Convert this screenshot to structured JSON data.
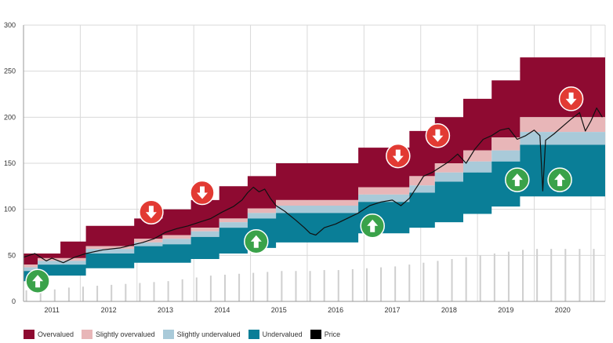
{
  "chart_data": {
    "type": "area",
    "title": "",
    "xlabel": "",
    "ylabel": "",
    "ylim": [
      0,
      300
    ],
    "y_ticks": [
      "0",
      "50",
      "100",
      "150",
      "200",
      "250",
      "300"
    ],
    "x_ticks": [
      "2011",
      "2012",
      "2013",
      "2014",
      "2015",
      "2016",
      "2017",
      "2018",
      "2019",
      "2020"
    ],
    "grid": true,
    "legend_position": "bottom",
    "legend": [
      {
        "label": "Overvalued",
        "color": "#8e0a31"
      },
      {
        "label": "Slightly overvalued",
        "color": "#e8b6b8"
      },
      {
        "label": "Slightly undervalued",
        "color": "#a9cad9"
      },
      {
        "label": "Undervalued",
        "color": "#0a7e97"
      },
      {
        "label": "Price",
        "color": "#000000"
      }
    ],
    "band_steps": [
      {
        "x": 2010.5,
        "b1": 22,
        "b2": 33,
        "b3": 37,
        "b4": 40,
        "top": 52
      },
      {
        "x": 2010.75,
        "b1": 28,
        "b2": 40,
        "b3": 44,
        "b4": 47,
        "top": 52
      },
      {
        "x": 2011.15,
        "b1": 28,
        "b2": 40,
        "b3": 44,
        "b4": 47,
        "top": 65
      },
      {
        "x": 2011.6,
        "b1": 36,
        "b2": 52,
        "b3": 57,
        "b4": 60,
        "top": 82
      },
      {
        "x": 2012.45,
        "b1": 42,
        "b2": 60,
        "b3": 64,
        "b4": 68,
        "top": 90
      },
      {
        "x": 2012.95,
        "b1": 42,
        "b2": 62,
        "b3": 68,
        "b4": 72,
        "top": 100
      },
      {
        "x": 2013.45,
        "b1": 46,
        "b2": 70,
        "b3": 76,
        "b4": 80,
        "top": 110
      },
      {
        "x": 2013.95,
        "b1": 52,
        "b2": 80,
        "b3": 86,
        "b4": 90,
        "top": 125
      },
      {
        "x": 2014.45,
        "b1": 58,
        "b2": 90,
        "b3": 96,
        "b4": 101,
        "top": 136
      },
      {
        "x": 2014.95,
        "b1": 64,
        "b2": 96,
        "b3": 104,
        "b4": 110,
        "top": 150
      },
      {
        "x": 2016.4,
        "b1": 74,
        "b2": 108,
        "b3": 116,
        "b4": 124,
        "top": 167
      },
      {
        "x": 2017.3,
        "b1": 80,
        "b2": 118,
        "b3": 126,
        "b4": 136,
        "top": 185
      },
      {
        "x": 2017.75,
        "b1": 86,
        "b2": 130,
        "b3": 140,
        "b4": 150,
        "top": 200
      },
      {
        "x": 2018.25,
        "b1": 95,
        "b2": 140,
        "b3": 152,
        "b4": 164,
        "top": 220
      },
      {
        "x": 2018.75,
        "b1": 103,
        "b2": 152,
        "b3": 164,
        "b4": 178,
        "top": 240
      },
      {
        "x": 2019.25,
        "b1": 114,
        "b2": 170,
        "b3": 184,
        "b4": 200,
        "top": 265
      },
      {
        "x": 2020.6,
        "b1": 114,
        "b2": 170,
        "b3": 184,
        "b4": 200,
        "top": 265
      }
    ],
    "price": [
      [
        2010.5,
        48
      ],
      [
        2010.7,
        52
      ],
      [
        2010.9,
        44
      ],
      [
        2011.0,
        47
      ],
      [
        2011.2,
        42
      ],
      [
        2011.4,
        48
      ],
      [
        2011.6,
        52
      ],
      [
        2011.9,
        56
      ],
      [
        2012.2,
        58
      ],
      [
        2012.4,
        61
      ],
      [
        2012.6,
        64
      ],
      [
        2012.8,
        68
      ],
      [
        2013.0,
        75
      ],
      [
        2013.2,
        79
      ],
      [
        2013.4,
        82
      ],
      [
        2013.6,
        86
      ],
      [
        2013.8,
        90
      ],
      [
        2014.0,
        97
      ],
      [
        2014.2,
        103
      ],
      [
        2014.35,
        110
      ],
      [
        2014.45,
        118
      ],
      [
        2014.55,
        124
      ],
      [
        2014.65,
        119
      ],
      [
        2014.75,
        122
      ],
      [
        2014.85,
        112
      ],
      [
        2014.95,
        104
      ],
      [
        2015.1,
        98
      ],
      [
        2015.3,
        88
      ],
      [
        2015.45,
        80
      ],
      [
        2015.55,
        74
      ],
      [
        2015.65,
        72
      ],
      [
        2015.8,
        80
      ],
      [
        2016.0,
        84
      ],
      [
        2016.2,
        90
      ],
      [
        2016.4,
        96
      ],
      [
        2016.6,
        104
      ],
      [
        2016.8,
        108
      ],
      [
        2017.0,
        110
      ],
      [
        2017.15,
        104
      ],
      [
        2017.3,
        112
      ],
      [
        2017.45,
        126
      ],
      [
        2017.55,
        136
      ],
      [
        2017.7,
        140
      ],
      [
        2017.85,
        146
      ],
      [
        2018.0,
        152
      ],
      [
        2018.15,
        160
      ],
      [
        2018.3,
        150
      ],
      [
        2018.45,
        165
      ],
      [
        2018.6,
        176
      ],
      [
        2018.75,
        180
      ],
      [
        2018.9,
        186
      ],
      [
        2019.05,
        188
      ],
      [
        2019.2,
        176
      ],
      [
        2019.35,
        180
      ],
      [
        2019.5,
        186
      ],
      [
        2019.6,
        180
      ],
      [
        2019.65,
        120
      ],
      [
        2019.7,
        175
      ],
      [
        2019.85,
        182
      ],
      [
        2020.0,
        190
      ],
      [
        2020.15,
        198
      ],
      [
        2020.3,
        205
      ],
      [
        2020.4,
        185
      ],
      [
        2020.5,
        196
      ],
      [
        2020.6,
        210
      ],
      [
        2020.7,
        200
      ]
    ],
    "volume_bars": [
      [
        2010.55,
        12
      ],
      [
        2010.8,
        14
      ],
      [
        2011.05,
        13
      ],
      [
        2011.3,
        15
      ],
      [
        2011.55,
        16
      ],
      [
        2011.8,
        17
      ],
      [
        2012.05,
        18
      ],
      [
        2012.3,
        19
      ],
      [
        2012.55,
        20
      ],
      [
        2012.8,
        21
      ],
      [
        2013.05,
        22
      ],
      [
        2013.3,
        24
      ],
      [
        2013.55,
        26
      ],
      [
        2013.8,
        28
      ],
      [
        2014.05,
        29
      ],
      [
        2014.3,
        30
      ],
      [
        2014.55,
        31
      ],
      [
        2014.8,
        32
      ],
      [
        2015.05,
        33
      ],
      [
        2015.3,
        33
      ],
      [
        2015.55,
        33
      ],
      [
        2015.8,
        34
      ],
      [
        2016.05,
        34
      ],
      [
        2016.3,
        35
      ],
      [
        2016.55,
        36
      ],
      [
        2016.8,
        37
      ],
      [
        2017.05,
        38
      ],
      [
        2017.3,
        40
      ],
      [
        2017.55,
        42
      ],
      [
        2017.8,
        44
      ],
      [
        2018.05,
        46
      ],
      [
        2018.3,
        48
      ],
      [
        2018.55,
        50
      ],
      [
        2018.8,
        52
      ],
      [
        2019.05,
        54
      ],
      [
        2019.3,
        56
      ],
      [
        2019.55,
        57
      ],
      [
        2019.8,
        57
      ],
      [
        2020.05,
        57
      ],
      [
        2020.3,
        57
      ],
      [
        2020.55,
        57
      ]
    ],
    "markers": [
      {
        "x": 2010.75,
        "y": 22,
        "dir": "up"
      },
      {
        "x": 2012.75,
        "y": 97,
        "dir": "down"
      },
      {
        "x": 2013.65,
        "y": 118,
        "dir": "down"
      },
      {
        "x": 2014.6,
        "y": 65,
        "dir": "up"
      },
      {
        "x": 2016.65,
        "y": 82,
        "dir": "up"
      },
      {
        "x": 2017.1,
        "y": 158,
        "dir": "down"
      },
      {
        "x": 2017.8,
        "y": 180,
        "dir": "down"
      },
      {
        "x": 2019.2,
        "y": 132,
        "dir": "up"
      },
      {
        "x": 2019.95,
        "y": 132,
        "dir": "up"
      },
      {
        "x": 2020.15,
        "y": 220,
        "dir": "down"
      }
    ]
  }
}
